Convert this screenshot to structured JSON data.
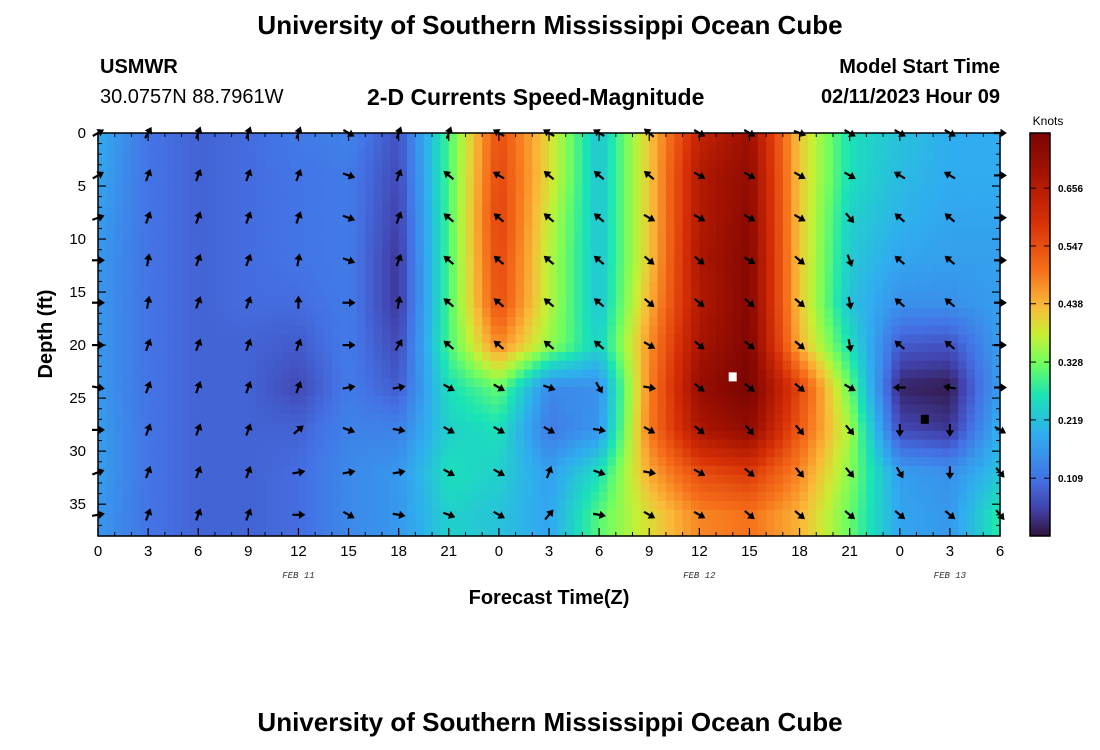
{
  "header": {
    "title_top": "University of Southern Mississippi Ocean Cube",
    "title_bottom": "University of Southern Mississippi Ocean Cube",
    "station": "USMWR",
    "coords": "30.0757N  88.7961W",
    "product": "2-D Currents Speed-Magnitude",
    "model_start_label": "Model Start Time",
    "model_start_value": "02/11/2023 Hour 09"
  },
  "colorbar": {
    "title": "Knots",
    "ticks": [
      "0.656",
      "0.547",
      "0.438",
      "0.328",
      "0.219",
      "0.109"
    ],
    "tick_values": [
      0.656,
      0.547,
      0.438,
      0.328,
      0.219,
      0.109
    ],
    "range": [
      0.0,
      0.76
    ]
  },
  "chart_data": {
    "type": "heatmap",
    "xlabel": "Forecast Time(Z)",
    "ylabel": "Depth (ft)",
    "x_tick_labels": [
      "0",
      "3",
      "6",
      "9",
      "12",
      "15",
      "18",
      "21",
      "0",
      "3",
      "6",
      "9",
      "12",
      "15",
      "18",
      "21",
      "0",
      "3",
      "6"
    ],
    "x_range_hours": [
      0,
      54
    ],
    "date_labels": [
      {
        "label": "FEB 11",
        "hour": 12
      },
      {
        "label": "FEB 12",
        "hour": 36
      },
      {
        "label": "FEB 13",
        "hour": 51
      }
    ],
    "y_tick_labels": [
      "0",
      "5",
      "10",
      "15",
      "20",
      "25",
      "30",
      "35"
    ],
    "y_tick_values": [
      0,
      5,
      10,
      15,
      20,
      25,
      30,
      35
    ],
    "ylim": [
      0,
      38
    ],
    "y_inverted": true,
    "hours": [
      0,
      3,
      6,
      9,
      12,
      15,
      18,
      21,
      24,
      27,
      30,
      33,
      36,
      39,
      42,
      45,
      48,
      51,
      54
    ],
    "depths": [
      0,
      4,
      8,
      12,
      16,
      20,
      24,
      28,
      32,
      36
    ],
    "speed_knots": [
      [
        0.19,
        0.11,
        0.09,
        0.1,
        0.12,
        0.13,
        0.07,
        0.3,
        0.55,
        0.4,
        0.22,
        0.42,
        0.63,
        0.7,
        0.42,
        0.26,
        0.22,
        0.19,
        0.19
      ],
      [
        0.18,
        0.11,
        0.09,
        0.1,
        0.11,
        0.12,
        0.06,
        0.3,
        0.56,
        0.4,
        0.22,
        0.42,
        0.66,
        0.72,
        0.42,
        0.26,
        0.21,
        0.19,
        0.19
      ],
      [
        0.17,
        0.11,
        0.09,
        0.1,
        0.11,
        0.12,
        0.05,
        0.3,
        0.57,
        0.38,
        0.22,
        0.42,
        0.66,
        0.73,
        0.42,
        0.24,
        0.2,
        0.18,
        0.18
      ],
      [
        0.16,
        0.11,
        0.09,
        0.1,
        0.11,
        0.12,
        0.04,
        0.3,
        0.56,
        0.37,
        0.22,
        0.42,
        0.67,
        0.74,
        0.42,
        0.23,
        0.18,
        0.17,
        0.17
      ],
      [
        0.16,
        0.11,
        0.09,
        0.1,
        0.1,
        0.12,
        0.04,
        0.3,
        0.55,
        0.37,
        0.22,
        0.44,
        0.66,
        0.74,
        0.42,
        0.22,
        0.15,
        0.15,
        0.17
      ],
      [
        0.16,
        0.11,
        0.09,
        0.09,
        0.08,
        0.12,
        0.06,
        0.3,
        0.48,
        0.35,
        0.24,
        0.47,
        0.68,
        0.75,
        0.44,
        0.26,
        0.08,
        0.07,
        0.17
      ],
      [
        0.16,
        0.11,
        0.09,
        0.09,
        0.06,
        0.12,
        0.08,
        0.26,
        0.32,
        0.14,
        0.15,
        0.48,
        0.71,
        0.76,
        0.56,
        0.32,
        0.02,
        0.01,
        0.17
      ],
      [
        0.17,
        0.11,
        0.09,
        0.09,
        0.09,
        0.13,
        0.13,
        0.24,
        0.26,
        0.12,
        0.16,
        0.49,
        0.67,
        0.72,
        0.53,
        0.36,
        0.06,
        0.04,
        0.2
      ],
      [
        0.17,
        0.11,
        0.09,
        0.09,
        0.1,
        0.14,
        0.16,
        0.26,
        0.24,
        0.17,
        0.26,
        0.45,
        0.55,
        0.58,
        0.48,
        0.34,
        0.17,
        0.15,
        0.22
      ],
      [
        0.16,
        0.11,
        0.09,
        0.09,
        0.1,
        0.14,
        0.16,
        0.24,
        0.22,
        0.18,
        0.31,
        0.4,
        0.48,
        0.5,
        0.44,
        0.32,
        0.18,
        0.16,
        0.28
      ]
    ],
    "vector_deg": [
      [
        -120,
        210,
        200,
        200,
        200,
        -60,
        200,
        200,
        120,
        120,
        120,
        130,
        -60,
        -60,
        -70,
        -60,
        -60,
        -60,
        -90
      ],
      [
        -120,
        200,
        200,
        200,
        200,
        -70,
        200,
        130,
        120,
        130,
        130,
        130,
        -60,
        -60,
        -60,
        -60,
        120,
        120,
        -90
      ],
      [
        -110,
        200,
        200,
        200,
        200,
        -70,
        200,
        130,
        130,
        130,
        130,
        -60,
        -60,
        -60,
        -60,
        -40,
        130,
        130,
        -90
      ],
      [
        -90,
        190,
        200,
        200,
        190,
        -70,
        200,
        130,
        130,
        130,
        130,
        -50,
        -50,
        -60,
        -50,
        -20,
        130,
        130,
        -90
      ],
      [
        -90,
        190,
        200,
        200,
        180,
        -90,
        190,
        130,
        130,
        130,
        130,
        -50,
        -50,
        -50,
        -50,
        -10,
        130,
        130,
        -90
      ],
      [
        -90,
        200,
        200,
        200,
        200,
        -90,
        210,
        130,
        130,
        130,
        130,
        -60,
        -50,
        -50,
        -50,
        -10,
        130,
        130,
        -90
      ],
      [
        -80,
        200,
        200,
        200,
        200,
        -100,
        -100,
        -60,
        -60,
        -70,
        -30,
        -80,
        -50,
        -50,
        -50,
        -60,
        90,
        100,
        -90
      ],
      [
        -90,
        200,
        200,
        200,
        230,
        -70,
        -80,
        -60,
        -60,
        -60,
        -80,
        -60,
        -50,
        -40,
        -40,
        -40,
        0,
        0,
        -60
      ],
      [
        -110,
        200,
        200,
        200,
        -100,
        -100,
        -100,
        -60,
        -60,
        200,
        -70,
        -80,
        -60,
        -50,
        -40,
        -40,
        -30,
        0,
        -40
      ],
      [
        -100,
        200,
        200,
        200,
        -90,
        -60,
        -80,
        -70,
        -60,
        220,
        -80,
        -60,
        -60,
        -50,
        -50,
        -50,
        -50,
        -50,
        -40
      ]
    ],
    "markers": [
      {
        "hour": 38,
        "depth": 23,
        "color": "#ffffff"
      },
      {
        "hour": 49.5,
        "depth": 27,
        "color": "#000000"
      }
    ]
  }
}
